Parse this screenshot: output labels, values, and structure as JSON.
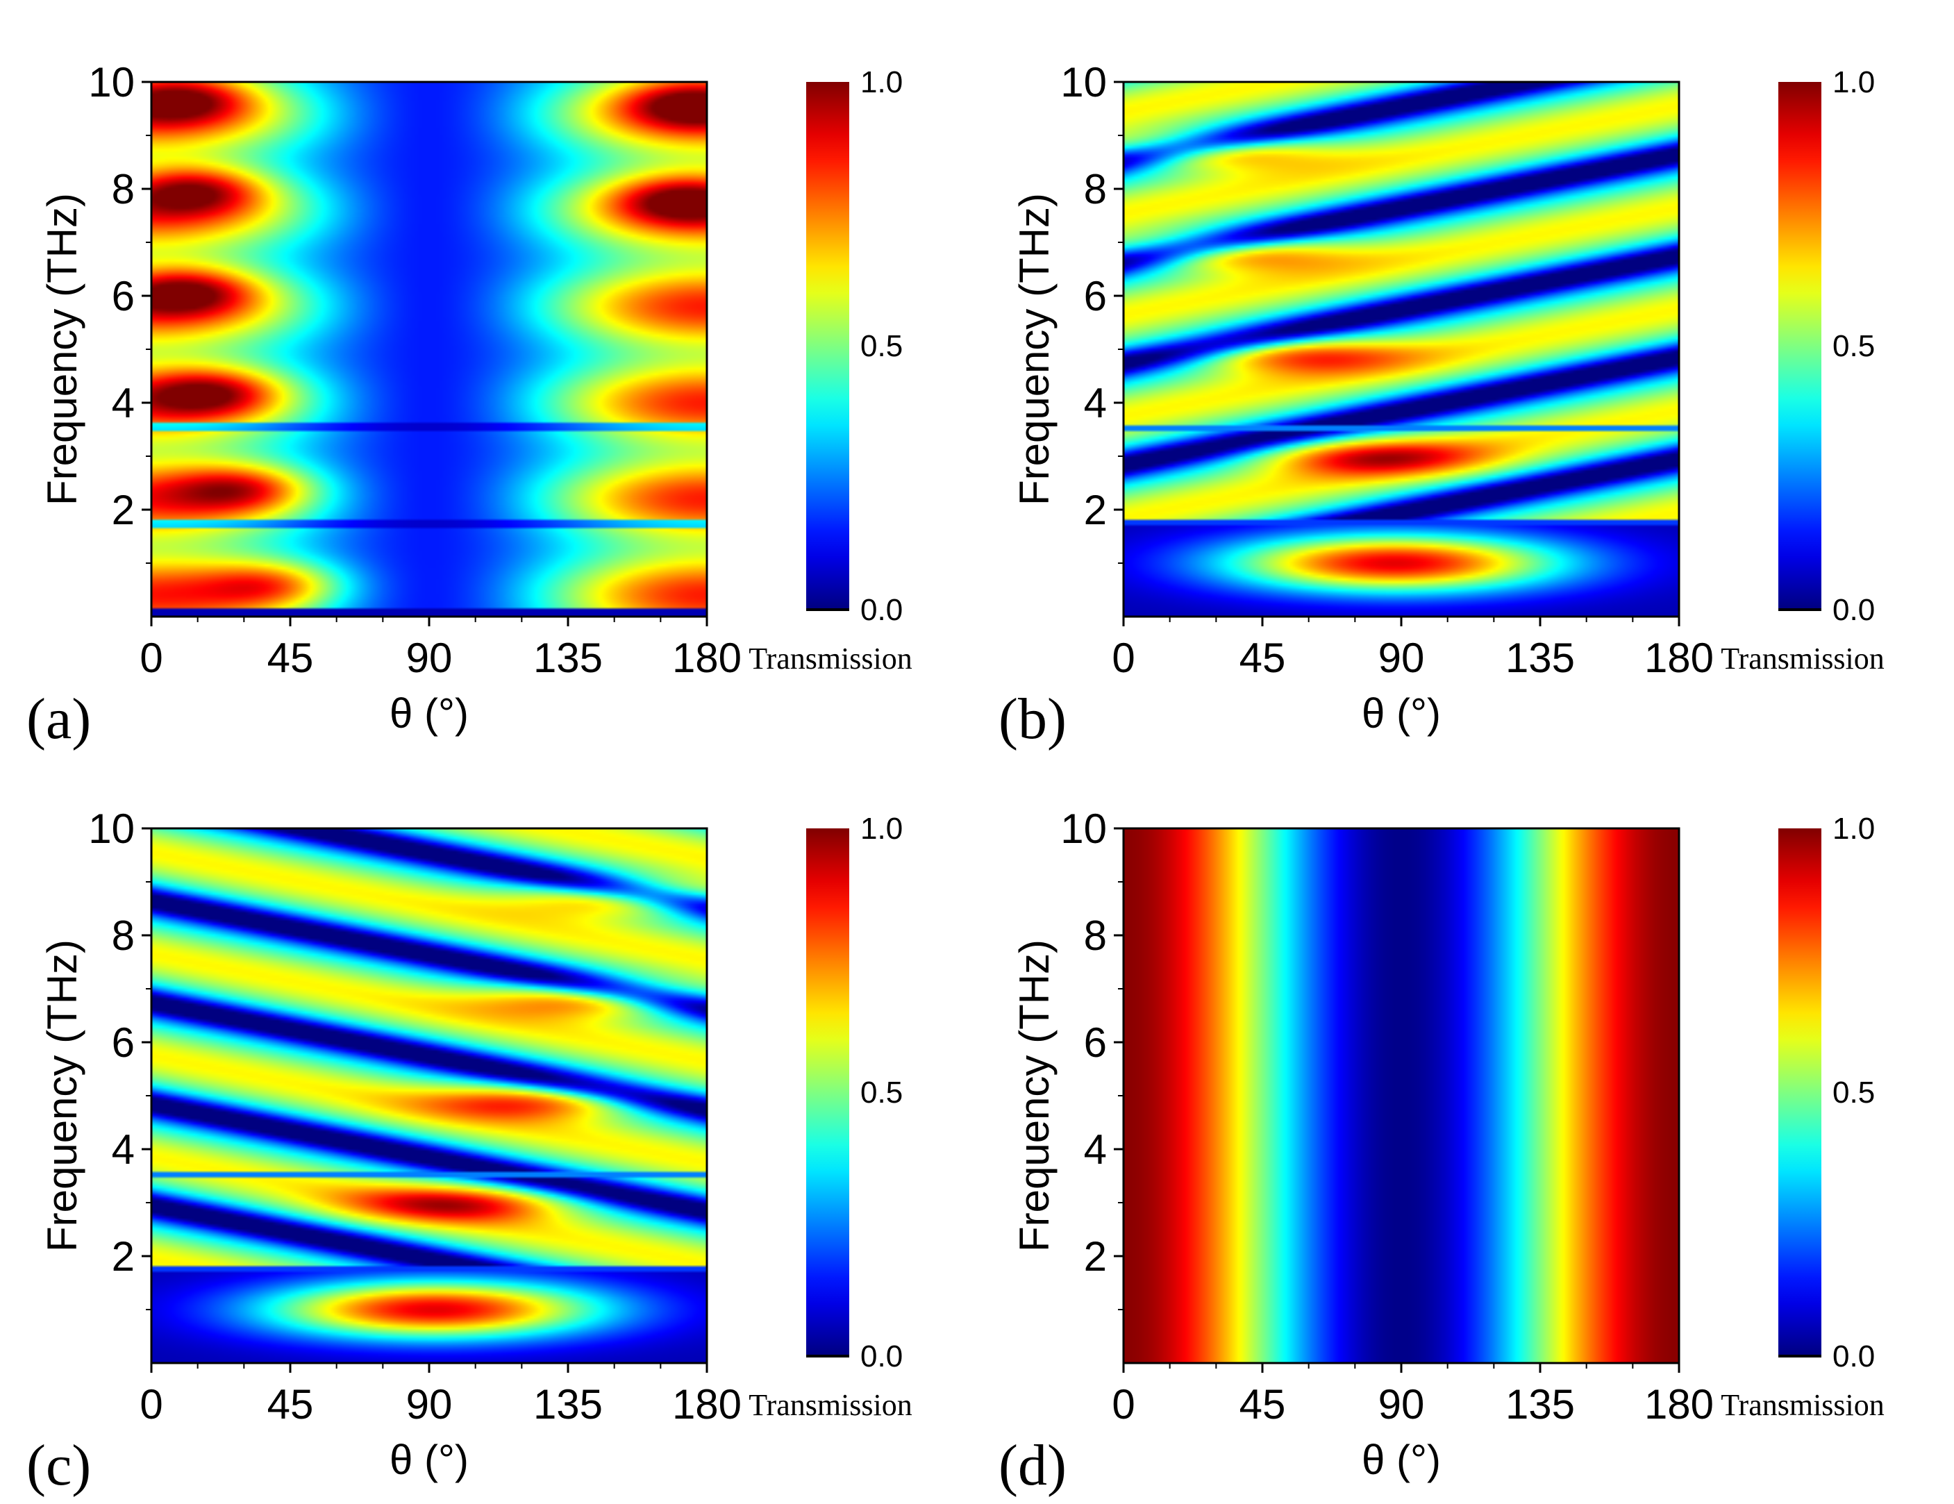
{
  "chart_data": [
    {
      "type": "heatmap",
      "panel": "(a)",
      "xlabel": "θ (°)",
      "ylabel": "Frequency (THz)",
      "xlim": [
        0,
        180
      ],
      "ylim": [
        0,
        10
      ],
      "xticks": [
        "0",
        "45",
        "90",
        "135",
        "180"
      ],
      "yticks": [
        "2",
        "4",
        "6",
        "8",
        "10"
      ],
      "colorbar": {
        "title": "Transmission",
        "min": 0.0,
        "max": 1.0,
        "ticks": [
          "0.0",
          "0.5",
          "1.0"
        ]
      },
      "pattern": "a",
      "hot_spots": [
        {
          "theta": 10,
          "freq": 9.7,
          "value": 0.92
        },
        {
          "theta": 15,
          "freq": 8.0,
          "value": 0.95
        },
        {
          "theta": 12,
          "freq": 6.1,
          "value": 0.92
        },
        {
          "theta": 20,
          "freq": 4.2,
          "value": 0.9
        },
        {
          "theta": 30,
          "freq": 2.4,
          "value": 0.88
        },
        {
          "theta": 40,
          "freq": 0.6,
          "value": 0.85
        },
        {
          "theta": 175,
          "freq": 9.6,
          "value": 0.9
        },
        {
          "theta": 172,
          "freq": 7.8,
          "value": 0.88
        }
      ]
    },
    {
      "type": "heatmap",
      "panel": "(b)",
      "xlabel": "θ (°)",
      "ylabel": "Frequency (THz)",
      "xlim": [
        0,
        180
      ],
      "ylim": [
        0,
        10
      ],
      "xticks": [
        "0",
        "45",
        "90",
        "135",
        "180"
      ],
      "yticks": [
        "2",
        "4",
        "6",
        "8",
        "10"
      ],
      "colorbar": {
        "title": "Transmission",
        "min": 0.0,
        "max": 1.0,
        "ticks": [
          "0.0",
          "0.5",
          "1.0"
        ]
      },
      "pattern": "b",
      "hot_spots": [
        {
          "theta": 28,
          "freq": 8.7,
          "value": 0.82
        },
        {
          "theta": 35,
          "freq": 6.8,
          "value": 0.82
        },
        {
          "theta": 55,
          "freq": 4.9,
          "value": 0.82
        },
        {
          "theta": 80,
          "freq": 3.0,
          "value": 0.85
        },
        {
          "theta": 88,
          "freq": 1.0,
          "value": 0.92
        }
      ]
    },
    {
      "type": "heatmap",
      "panel": "(c)",
      "xlabel": "θ (°)",
      "ylabel": "Frequency (THz)",
      "xlim": [
        0,
        180
      ],
      "ylim": [
        0,
        10
      ],
      "xticks": [
        "0",
        "45",
        "90",
        "135",
        "180"
      ],
      "yticks": [
        "2",
        "4",
        "6",
        "8",
        "10"
      ],
      "colorbar": {
        "title": "Transmission",
        "min": 0.0,
        "max": 1.0,
        "ticks": [
          "0.0",
          "0.5",
          "1.0"
        ]
      },
      "pattern": "c",
      "hot_spots": [
        {
          "theta": 155,
          "freq": 8.7,
          "value": 0.82
        },
        {
          "theta": 143,
          "freq": 6.8,
          "value": 0.82
        },
        {
          "theta": 125,
          "freq": 4.9,
          "value": 0.82
        },
        {
          "theta": 100,
          "freq": 3.0,
          "value": 0.85
        },
        {
          "theta": 92,
          "freq": 1.0,
          "value": 0.92
        }
      ]
    },
    {
      "type": "heatmap",
      "panel": "(d)",
      "xlabel": "θ (°)",
      "ylabel": "Frequency (THz)",
      "xlim": [
        0,
        180
      ],
      "ylim": [
        0,
        10
      ],
      "xticks": [
        "0",
        "45",
        "90",
        "135",
        "180"
      ],
      "yticks": [
        "2",
        "4",
        "6",
        "8",
        "10"
      ],
      "colorbar": {
        "title": "Transmission",
        "min": 0.0,
        "max": 1.0,
        "ticks": [
          "0.0",
          "0.5",
          "1.0"
        ]
      },
      "pattern": "d",
      "description_values": [
        {
          "theta": 0,
          "value": 1.0
        },
        {
          "theta": 45,
          "value": 0.5
        },
        {
          "theta": 90,
          "value": 0.0
        },
        {
          "theta": 135,
          "value": 0.5
        },
        {
          "theta": 180,
          "value": 1.0
        }
      ]
    }
  ]
}
